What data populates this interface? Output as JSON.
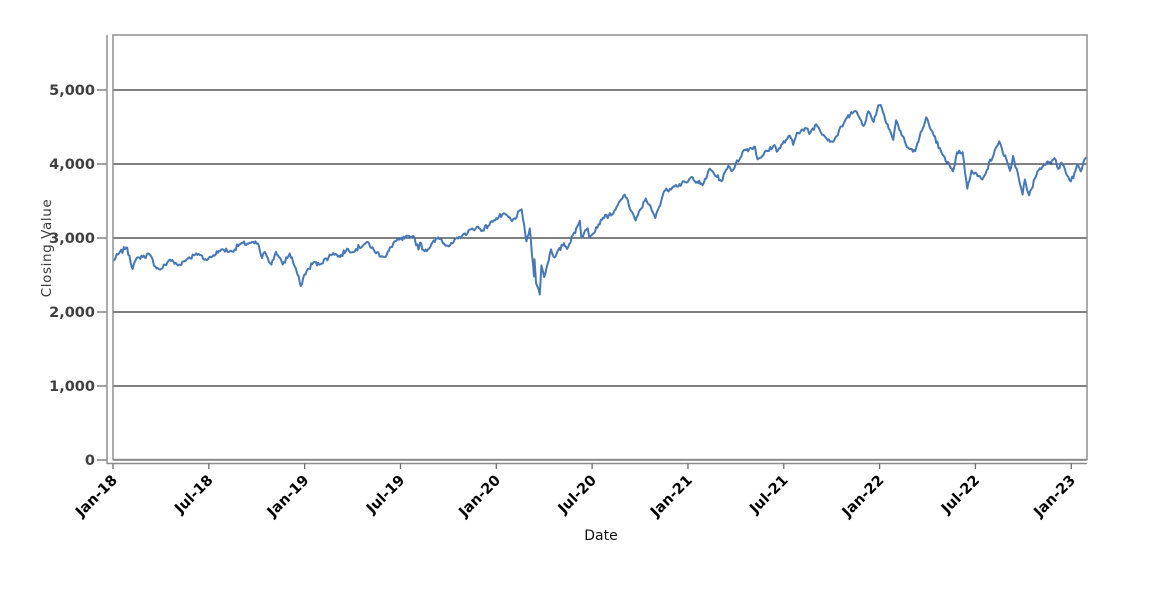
{
  "figure": {
    "background": "#ffffff"
  },
  "chart_data": {
    "type": "line",
    "title": "",
    "xlabel": "Date",
    "ylabel": "Closing Value",
    "legend": "none",
    "grid": "horizontal-black-lines",
    "ylim": [
      0,
      5743
    ],
    "x_range": [
      "2018-01-02",
      "2023-01-31"
    ],
    "y_ticks": [
      {
        "value": 0,
        "label": "0"
      },
      {
        "value": 1000,
        "label": "1,000"
      },
      {
        "value": 2000,
        "label": "2,000"
      },
      {
        "value": 3000,
        "label": "3,000"
      },
      {
        "value": 4000,
        "label": "4,000"
      },
      {
        "value": 5000,
        "label": "5,000"
      }
    ],
    "x_ticks": [
      {
        "months": 0,
        "label": "Jan-18"
      },
      {
        "months": 6,
        "label": "Jul-18"
      },
      {
        "months": 12,
        "label": "Jan-19"
      },
      {
        "months": 18,
        "label": "Jul-19"
      },
      {
        "months": 24,
        "label": "Jan-20"
      },
      {
        "months": 30,
        "label": "Jul-20"
      },
      {
        "months": 36,
        "label": "Jan-21"
      },
      {
        "months": 42,
        "label": "Jul-21"
      },
      {
        "months": 48,
        "label": "Jan-22"
      },
      {
        "months": 54,
        "label": "Jul-22"
      },
      {
        "months": 60,
        "label": "Jan-23"
      }
    ],
    "colors": {
      "line": "#4678b8",
      "gridline": "#000000",
      "frame": "#8a8a8a",
      "axis_line": "#8a8a8a",
      "tick": "#6e6e6e",
      "y_tick_label": "#3f3f3f",
      "x_tick_label": "#000000"
    },
    "render_hints": {
      "noise_amplitude": 36,
      "noise_seed": 7,
      "sample_days": 2.2
    },
    "series": [
      {
        "name": "Closing Value",
        "points": [
          [
            "2018-01-02",
            2696
          ],
          [
            "2018-01-12",
            2786
          ],
          [
            "2018-01-26",
            2873
          ],
          [
            "2018-02-02",
            2762
          ],
          [
            "2018-02-08",
            2581
          ],
          [
            "2018-02-16",
            2732
          ],
          [
            "2018-02-27",
            2744
          ],
          [
            "2018-03-09",
            2787
          ],
          [
            "2018-03-23",
            2588
          ],
          [
            "2018-04-02",
            2582
          ],
          [
            "2018-04-18",
            2708
          ],
          [
            "2018-05-03",
            2630
          ],
          [
            "2018-05-22",
            2724
          ],
          [
            "2018-06-12",
            2786
          ],
          [
            "2018-06-27",
            2700
          ],
          [
            "2018-07-25",
            2846
          ],
          [
            "2018-08-15",
            2818
          ],
          [
            "2018-08-29",
            2914
          ],
          [
            "2018-09-20",
            2931
          ],
          [
            "2018-10-03",
            2926
          ],
          [
            "2018-10-11",
            2728
          ],
          [
            "2018-10-17",
            2809
          ],
          [
            "2018-10-29",
            2641
          ],
          [
            "2018-11-07",
            2814
          ],
          [
            "2018-11-20",
            2642
          ],
          [
            "2018-12-03",
            2790
          ],
          [
            "2018-12-14",
            2600
          ],
          [
            "2018-12-24",
            2351
          ],
          [
            "2018-12-31",
            2507
          ],
          [
            "2019-01-09",
            2585
          ],
          [
            "2019-01-18",
            2671
          ],
          [
            "2019-01-29",
            2640
          ],
          [
            "2019-02-25",
            2796
          ],
          [
            "2019-03-08",
            2743
          ],
          [
            "2019-03-21",
            2855
          ],
          [
            "2019-03-27",
            2805
          ],
          [
            "2019-04-30",
            2946
          ],
          [
            "2019-05-13",
            2812
          ],
          [
            "2019-06-03",
            2744
          ],
          [
            "2019-06-20",
            2954
          ],
          [
            "2019-07-26",
            3026
          ],
          [
            "2019-08-05",
            2845
          ],
          [
            "2019-08-08",
            2938
          ],
          [
            "2019-08-14",
            2841
          ],
          [
            "2019-08-23",
            2847
          ],
          [
            "2019-09-12",
            3010
          ],
          [
            "2019-10-02",
            2888
          ],
          [
            "2019-10-28",
            3039
          ],
          [
            "2019-11-27",
            3154
          ],
          [
            "2019-12-03",
            3093
          ],
          [
            "2019-12-27",
            3240
          ],
          [
            "2020-01-17",
            3330
          ],
          [
            "2020-01-31",
            3226
          ],
          [
            "2020-02-19",
            3386
          ],
          [
            "2020-02-28",
            2954
          ],
          [
            "2020-03-04",
            3130
          ],
          [
            "2020-03-12",
            2481
          ],
          [
            "2020-03-13",
            2711
          ],
          [
            "2020-03-16",
            2386
          ],
          [
            "2020-03-23",
            2237
          ],
          [
            "2020-03-26",
            2630
          ],
          [
            "2020-04-01",
            2471
          ],
          [
            "2020-04-14",
            2846
          ],
          [
            "2020-04-21",
            2737
          ],
          [
            "2020-05-08",
            2930
          ],
          [
            "2020-05-14",
            2853
          ],
          [
            "2020-06-08",
            3232
          ],
          [
            "2020-06-11",
            3002
          ],
          [
            "2020-06-23",
            3131
          ],
          [
            "2020-06-26",
            3009
          ],
          [
            "2020-07-22",
            3276
          ],
          [
            "2020-08-11",
            3334
          ],
          [
            "2020-09-02",
            3588
          ],
          [
            "2020-09-23",
            3237
          ],
          [
            "2020-10-12",
            3534
          ],
          [
            "2020-10-30",
            3270
          ],
          [
            "2020-11-16",
            3627
          ],
          [
            "2020-12-04",
            3699
          ],
          [
            "2020-12-31",
            3756
          ],
          [
            "2021-01-08",
            3825
          ],
          [
            "2021-01-29",
            3714
          ],
          [
            "2021-02-12",
            3935
          ],
          [
            "2021-03-04",
            3768
          ],
          [
            "2021-03-17",
            3974
          ],
          [
            "2021-03-25",
            3910
          ],
          [
            "2021-04-16",
            4185
          ],
          [
            "2021-05-07",
            4233
          ],
          [
            "2021-05-12",
            4063
          ],
          [
            "2021-06-14",
            4255
          ],
          [
            "2021-06-18",
            4166
          ],
          [
            "2021-07-12",
            4385
          ],
          [
            "2021-07-19",
            4258
          ],
          [
            "2021-07-26",
            4422
          ],
          [
            "2021-08-16",
            4480
          ],
          [
            "2021-08-19",
            4406
          ],
          [
            "2021-09-02",
            4537
          ],
          [
            "2021-09-20",
            4358
          ],
          [
            "2021-10-04",
            4300
          ],
          [
            "2021-10-26",
            4575
          ],
          [
            "2021-11-08",
            4702
          ],
          [
            "2021-11-18",
            4705
          ],
          [
            "2021-12-01",
            4513
          ],
          [
            "2021-12-10",
            4712
          ],
          [
            "2021-12-20",
            4568
          ],
          [
            "2021-12-29",
            4793
          ],
          [
            "2022-01-03",
            4797
          ],
          [
            "2022-01-27",
            4327
          ],
          [
            "2022-02-02",
            4589
          ],
          [
            "2022-02-23",
            4226
          ],
          [
            "2022-03-08",
            4171
          ],
          [
            "2022-03-29",
            4631
          ],
          [
            "2022-04-06",
            4481
          ],
          [
            "2022-04-29",
            4132
          ],
          [
            "2022-05-19",
            3901
          ],
          [
            "2022-05-27",
            4158
          ],
          [
            "2022-06-07",
            4160
          ],
          [
            "2022-06-16",
            3667
          ],
          [
            "2022-06-24",
            3912
          ],
          [
            "2022-07-14",
            3790
          ],
          [
            "2022-08-16",
            4305
          ],
          [
            "2022-09-06",
            3908
          ],
          [
            "2022-09-12",
            4110
          ],
          [
            "2022-09-30",
            3586
          ],
          [
            "2022-10-04",
            3791
          ],
          [
            "2022-10-12",
            3577
          ],
          [
            "2022-10-28",
            3901
          ],
          [
            "2022-11-11",
            3993
          ],
          [
            "2022-11-30",
            4080
          ],
          [
            "2022-12-07",
            3934
          ],
          [
            "2022-12-13",
            4020
          ],
          [
            "2022-12-28",
            3783
          ],
          [
            "2023-01-05",
            3808
          ],
          [
            "2023-01-13",
            3999
          ],
          [
            "2023-01-19",
            3899
          ],
          [
            "2023-01-26",
            4060
          ],
          [
            "2023-01-31",
            4077
          ]
        ]
      }
    ]
  }
}
